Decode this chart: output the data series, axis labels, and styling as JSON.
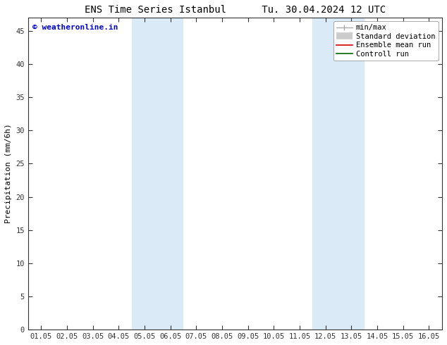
{
  "title_left": "ENS Time Series Istanbul",
  "title_right": "Tu. 30.04.2024 12 UTC",
  "ylabel": "Precipitation (mm/6h)",
  "xlabel": "",
  "x_tick_labels": [
    "01.05",
    "02.05",
    "03.05",
    "04.05",
    "05.05",
    "06.05",
    "07.05",
    "08.05",
    "09.05",
    "10.05",
    "11.05",
    "12.05",
    "13.05",
    "14.05",
    "15.05",
    "16.05"
  ],
  "x_tick_positions": [
    0,
    1,
    2,
    3,
    4,
    5,
    6,
    7,
    8,
    9,
    10,
    11,
    12,
    13,
    14,
    15
  ],
  "xlim": [
    -0.5,
    15.5
  ],
  "ylim": [
    0,
    47
  ],
  "yticks": [
    0,
    5,
    10,
    15,
    20,
    25,
    30,
    35,
    40,
    45
  ],
  "background_color": "#ffffff",
  "plot_bg_color": "#ffffff",
  "shaded_bands": [
    {
      "xmin": 3.5,
      "xmax": 5.5,
      "color": "#daeaf7"
    },
    {
      "xmin": 10.5,
      "xmax": 12.5,
      "color": "#daeaf7"
    }
  ],
  "watermark_text": "© weatheronline.in",
  "watermark_color": "#0000cc",
  "legend_entries": [
    {
      "label": "min/max",
      "color": "#aaaaaa",
      "lw": 1.0,
      "style": "line_with_tick"
    },
    {
      "label": "Standard deviation",
      "color": "#cccccc",
      "lw": 7,
      "style": "band"
    },
    {
      "label": "Ensemble mean run",
      "color": "#cc0000",
      "lw": 1.2,
      "style": "line"
    },
    {
      "label": "Controll run",
      "color": "#006600",
      "lw": 1.2,
      "style": "line"
    }
  ],
  "border_color": "#333333",
  "tick_color": "#333333",
  "font_size_title": 10,
  "font_size_axis": 8,
  "font_size_ticks": 7.5,
  "font_size_legend": 7.5,
  "font_size_watermark": 8
}
